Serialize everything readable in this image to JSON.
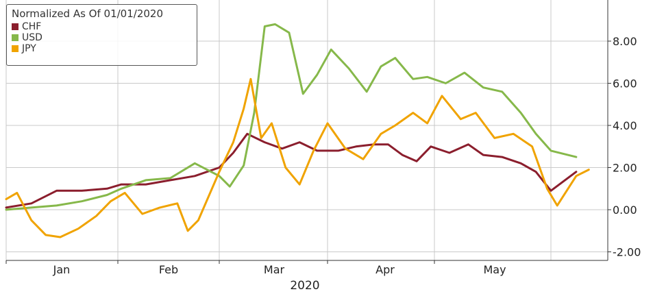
{
  "chart_data": {
    "type": "line",
    "title": "Normalized As Of 01/01/2020",
    "xlabel": "2020",
    "ylabel": "",
    "x_ticks": [
      "Jan",
      "Feb",
      "Mar",
      "Apr",
      "May"
    ],
    "y_ticks": [
      "-2.00",
      "0.00",
      "2.00",
      "4.00",
      "6.00",
      "8.00"
    ],
    "ylim": [
      -2.4,
      9.7
    ],
    "grid": true,
    "legend_position": "top-left",
    "series": [
      {
        "name": "CHF",
        "color": "#8b1e2d",
        "points": [
          [
            "2020-01-01",
            0.1
          ],
          [
            "2020-01-08",
            0.3
          ],
          [
            "2020-01-15",
            0.9
          ],
          [
            "2020-01-22",
            0.9
          ],
          [
            "2020-01-29",
            1.0
          ],
          [
            "2020-02-02",
            1.2
          ],
          [
            "2020-02-09",
            1.2
          ],
          [
            "2020-02-16",
            1.4
          ],
          [
            "2020-02-23",
            1.6
          ],
          [
            "2020-03-01",
            2.0
          ],
          [
            "2020-03-05",
            2.7
          ],
          [
            "2020-03-09",
            3.6
          ],
          [
            "2020-03-14",
            3.2
          ],
          [
            "2020-03-19",
            2.9
          ],
          [
            "2020-03-24",
            3.2
          ],
          [
            "2020-03-29",
            2.8
          ],
          [
            "2020-04-04",
            2.8
          ],
          [
            "2020-04-09",
            3.0
          ],
          [
            "2020-04-14",
            3.1
          ],
          [
            "2020-04-18",
            3.1
          ],
          [
            "2020-04-22",
            2.6
          ],
          [
            "2020-04-26",
            2.3
          ],
          [
            "2020-04-30",
            3.0
          ],
          [
            "2020-05-05",
            2.7
          ],
          [
            "2020-05-10",
            3.1
          ],
          [
            "2020-05-14",
            2.6
          ],
          [
            "2020-05-19",
            2.5
          ],
          [
            "2020-05-24",
            2.2
          ],
          [
            "2020-05-28",
            1.8
          ],
          [
            "2020-06-01",
            0.9
          ],
          [
            "2020-06-05",
            1.8
          ]
        ]
      },
      {
        "name": "USD",
        "color": "#86b84a",
        "points": [
          [
            "2020-01-01",
            0.0
          ],
          [
            "2020-01-08",
            0.1
          ],
          [
            "2020-01-15",
            0.2
          ],
          [
            "2020-01-22",
            0.4
          ],
          [
            "2020-01-29",
            0.7
          ],
          [
            "2020-02-02",
            1.0
          ],
          [
            "2020-02-09",
            1.4
          ],
          [
            "2020-02-16",
            1.5
          ],
          [
            "2020-02-23",
            2.2
          ],
          [
            "2020-03-01",
            1.6
          ],
          [
            "2020-03-04",
            1.1
          ],
          [
            "2020-03-08",
            2.1
          ],
          [
            "2020-03-11",
            4.6
          ],
          [
            "2020-03-14",
            8.7
          ],
          [
            "2020-03-17",
            8.8
          ],
          [
            "2020-03-21",
            8.4
          ],
          [
            "2020-03-25",
            5.5
          ],
          [
            "2020-03-29",
            6.4
          ],
          [
            "2020-04-02",
            7.6
          ],
          [
            "2020-04-07",
            6.7
          ],
          [
            "2020-04-12",
            5.6
          ],
          [
            "2020-04-16",
            6.8
          ],
          [
            "2020-04-20",
            7.2
          ],
          [
            "2020-04-25",
            6.2
          ],
          [
            "2020-04-29",
            6.3
          ],
          [
            "2020-05-04",
            6.0
          ],
          [
            "2020-05-09",
            6.5
          ],
          [
            "2020-05-14",
            5.8
          ],
          [
            "2020-05-19",
            5.6
          ],
          [
            "2020-05-24",
            4.6
          ],
          [
            "2020-05-28",
            3.6
          ],
          [
            "2020-06-01",
            2.8
          ],
          [
            "2020-06-05",
            2.5
          ]
        ]
      },
      {
        "name": "JPY",
        "color": "#f0a300",
        "points": [
          [
            "2020-01-01",
            0.5
          ],
          [
            "2020-01-04",
            0.8
          ],
          [
            "2020-01-08",
            -0.5
          ],
          [
            "2020-01-12",
            -1.2
          ],
          [
            "2020-01-16",
            -1.3
          ],
          [
            "2020-01-21",
            -0.9
          ],
          [
            "2020-01-26",
            -0.3
          ],
          [
            "2020-01-30",
            0.4
          ],
          [
            "2020-02-03",
            0.8
          ],
          [
            "2020-02-08",
            -0.2
          ],
          [
            "2020-02-13",
            0.1
          ],
          [
            "2020-02-18",
            0.3
          ],
          [
            "2020-02-21",
            -1.0
          ],
          [
            "2020-02-24",
            -0.5
          ],
          [
            "2020-03-01",
            1.8
          ],
          [
            "2020-03-05",
            3.2
          ],
          [
            "2020-03-08",
            4.8
          ],
          [
            "2020-03-10",
            6.2
          ],
          [
            "2020-03-13",
            3.4
          ],
          [
            "2020-03-16",
            4.1
          ],
          [
            "2020-03-20",
            2.0
          ],
          [
            "2020-03-24",
            1.2
          ],
          [
            "2020-03-28",
            2.8
          ],
          [
            "2020-04-01",
            4.1
          ],
          [
            "2020-04-06",
            2.9
          ],
          [
            "2020-04-11",
            2.4
          ],
          [
            "2020-04-16",
            3.6
          ],
          [
            "2020-04-20",
            4.0
          ],
          [
            "2020-04-25",
            4.6
          ],
          [
            "2020-04-29",
            4.1
          ],
          [
            "2020-05-03",
            5.4
          ],
          [
            "2020-05-08",
            4.3
          ],
          [
            "2020-05-12",
            4.6
          ],
          [
            "2020-05-17",
            3.4
          ],
          [
            "2020-05-22",
            3.6
          ],
          [
            "2020-05-27",
            3.0
          ],
          [
            "2020-05-31",
            1.0
          ],
          [
            "2020-06-02",
            0.2
          ],
          [
            "2020-06-05",
            1.6
          ],
          [
            "2020-06-07",
            1.9
          ]
        ]
      }
    ]
  }
}
